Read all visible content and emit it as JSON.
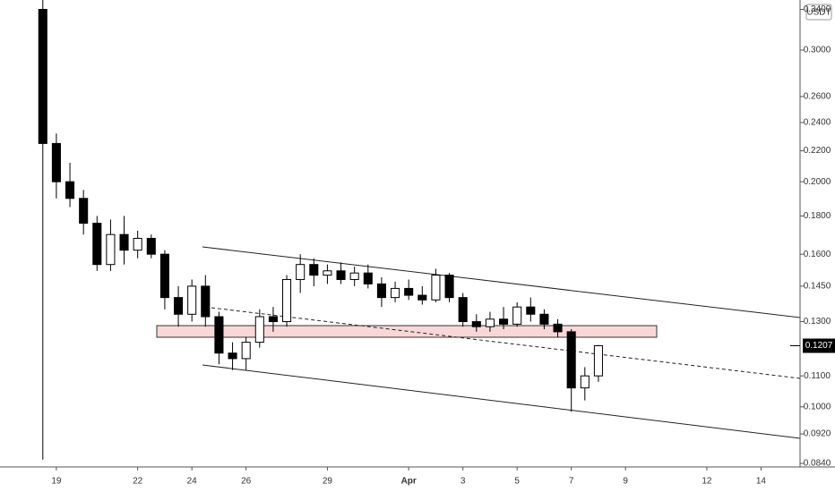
{
  "chart_data": {
    "type": "candlestick",
    "currency": "USDT",
    "log_scale": true,
    "grid": false,
    "up_color": "#ffffff",
    "down_color": "#000000",
    "x": [
      18.5,
      19,
      19.5,
      20,
      20.5,
      21,
      21.5,
      22,
      22.5,
      23,
      23.5,
      24,
      24.5,
      25,
      25.5,
      26,
      26.5,
      27,
      27.5,
      28,
      28.5,
      29,
      29.5,
      30,
      30.5,
      31,
      31.5,
      32,
      32.5,
      33,
      33.5,
      34,
      34.5,
      35,
      35.5,
      36,
      36.5,
      37,
      37.5,
      38,
      38.5,
      39
    ],
    "open": [
      0.34,
      0.225,
      0.2,
      0.19,
      0.176,
      0.155,
      0.17,
      0.162,
      0.168,
      0.16,
      0.14,
      0.133,
      0.145,
      0.132,
      0.118,
      0.116,
      0.122,
      0.132,
      0.13,
      0.148,
      0.155,
      0.15,
      0.152,
      0.148,
      0.151,
      0.146,
      0.14,
      0.144,
      0.141,
      0.139,
      0.15,
      0.14,
      0.13,
      0.128,
      0.131,
      0.129,
      0.136,
      0.133,
      0.129,
      0.126,
      0.106,
      0.11
    ],
    "high": [
      0.35,
      0.232,
      0.212,
      0.195,
      0.18,
      0.178,
      0.18,
      0.172,
      0.17,
      0.162,
      0.145,
      0.148,
      0.15,
      0.134,
      0.122,
      0.124,
      0.135,
      0.136,
      0.15,
      0.16,
      0.158,
      0.155,
      0.156,
      0.154,
      0.155,
      0.149,
      0.147,
      0.148,
      0.145,
      0.153,
      0.151,
      0.142,
      0.133,
      0.134,
      0.136,
      0.138,
      0.14,
      0.135,
      0.131,
      0.127,
      0.113,
      0.121
    ],
    "low": [
      0.085,
      0.19,
      0.185,
      0.17,
      0.152,
      0.152,
      0.155,
      0.158,
      0.158,
      0.135,
      0.128,
      0.13,
      0.128,
      0.114,
      0.112,
      0.112,
      0.12,
      0.126,
      0.128,
      0.142,
      0.145,
      0.146,
      0.146,
      0.145,
      0.144,
      0.136,
      0.138,
      0.139,
      0.137,
      0.138,
      0.138,
      0.128,
      0.126,
      0.126,
      0.127,
      0.128,
      0.13,
      0.127,
      0.124,
      0.0985,
      0.102,
      0.108
    ],
    "close": [
      0.225,
      0.2,
      0.19,
      0.176,
      0.155,
      0.17,
      0.162,
      0.168,
      0.16,
      0.14,
      0.133,
      0.145,
      0.132,
      0.118,
      0.116,
      0.122,
      0.132,
      0.13,
      0.148,
      0.155,
      0.15,
      0.152,
      0.148,
      0.151,
      0.146,
      0.14,
      0.144,
      0.141,
      0.139,
      0.15,
      0.14,
      0.13,
      0.128,
      0.131,
      0.129,
      0.136,
      0.133,
      0.129,
      0.126,
      0.106,
      0.11,
      0.1207
    ],
    "last_price": {
      "value": 0.1207,
      "label": "0.1207"
    },
    "xlim": [
      16.92,
      46.44
    ],
    "xticks": [
      {
        "value": 19,
        "label": "19"
      },
      {
        "value": 22,
        "label": "22"
      },
      {
        "value": 24,
        "label": "24"
      },
      {
        "value": 26,
        "label": "26"
      },
      {
        "value": 29,
        "label": "29"
      },
      {
        "value": 32,
        "label": "Apr"
      },
      {
        "value": 34,
        "label": "3"
      },
      {
        "value": 36,
        "label": "5"
      },
      {
        "value": 38,
        "label": "7"
      },
      {
        "value": 40,
        "label": "9"
      },
      {
        "value": 43,
        "label": "12"
      },
      {
        "value": 45,
        "label": "14"
      }
    ],
    "ylim": [
      0.0831,
      0.35
    ],
    "yticks": [
      {
        "value": 0.34,
        "label": "0.3400"
      },
      {
        "value": 0.3,
        "label": "0.3000"
      },
      {
        "value": 0.26,
        "label": "0.2600"
      },
      {
        "value": 0.24,
        "label": "0.2400"
      },
      {
        "value": 0.22,
        "label": "0.2200"
      },
      {
        "value": 0.2,
        "label": "0.2000"
      },
      {
        "value": 0.18,
        "label": "0.1800"
      },
      {
        "value": 0.16,
        "label": "0.1600"
      },
      {
        "value": 0.145,
        "label": "0.1450"
      },
      {
        "value": 0.13,
        "label": "0.1300"
      },
      {
        "value": 0.11,
        "label": "0.1100"
      },
      {
        "value": 0.1,
        "label": "0.1000"
      },
      {
        "value": 0.092,
        "label": "0.0920"
      },
      {
        "value": 0.084,
        "label": "0.0840"
      }
    ]
  }
}
